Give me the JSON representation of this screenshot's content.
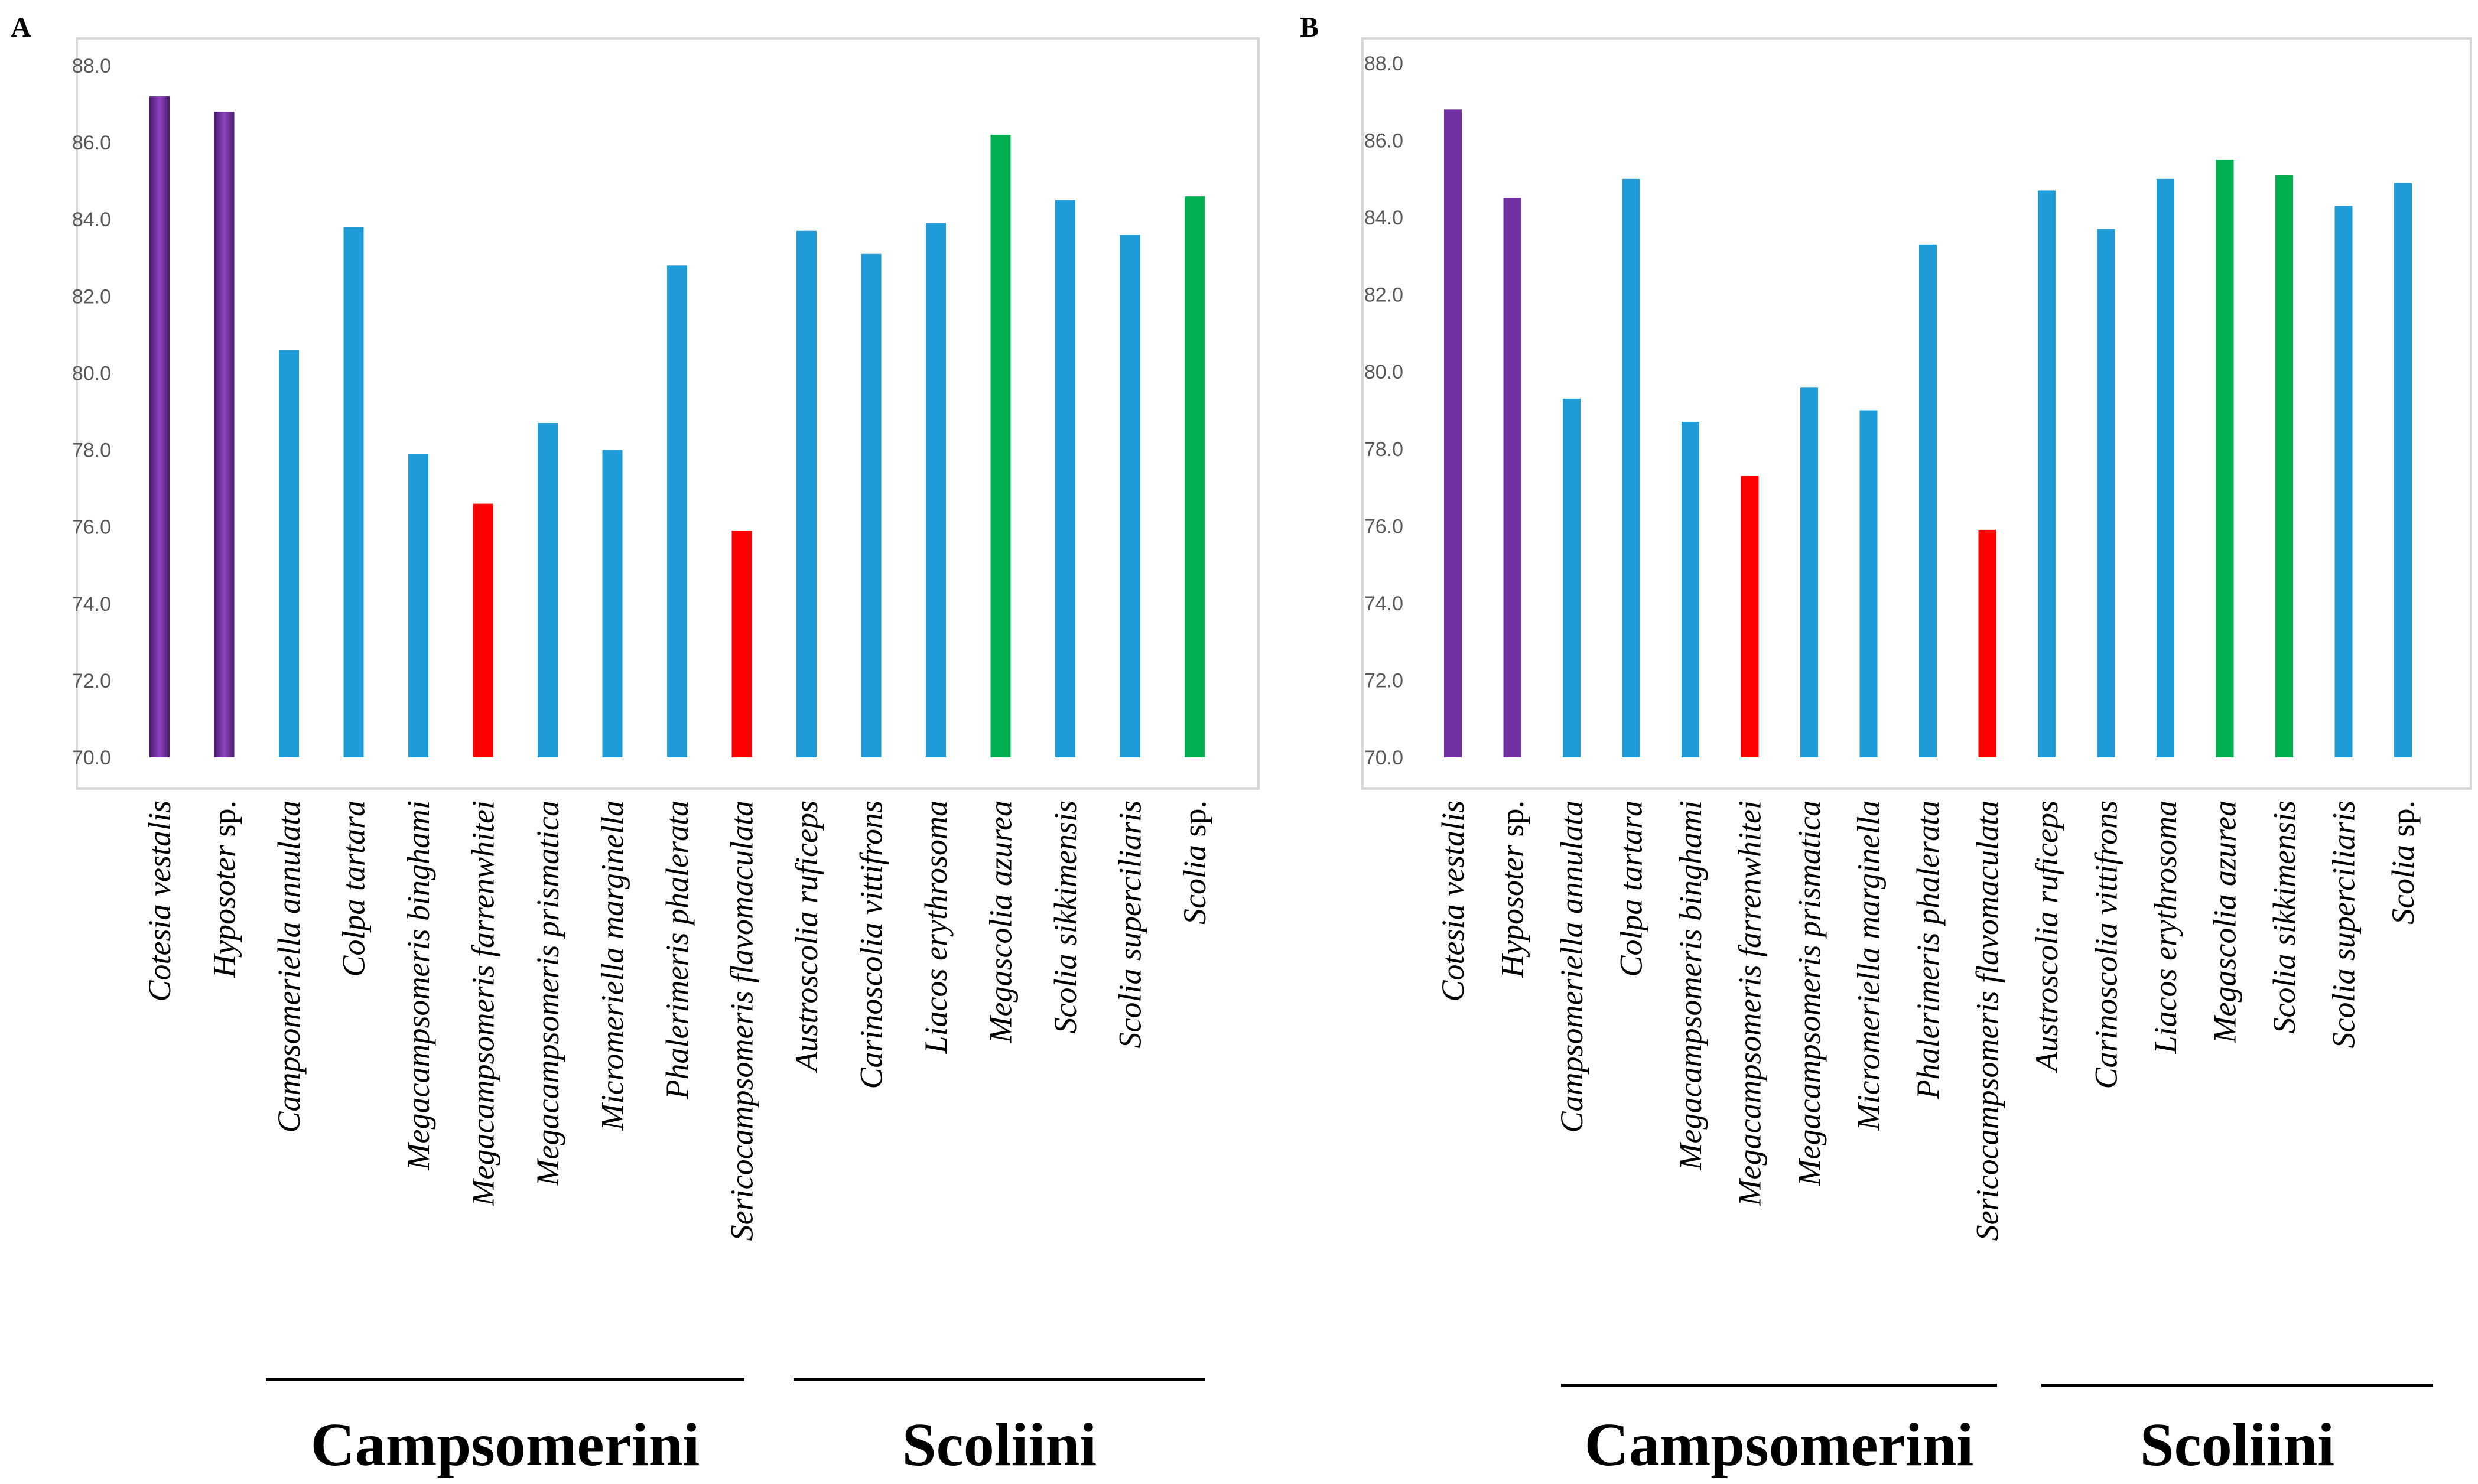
{
  "chart_data": [
    {
      "type": "bar",
      "panel": "A",
      "ylim": [
        70.0,
        88.0
      ],
      "yticks": [
        "70.0",
        "72.0",
        "74.0",
        "76.0",
        "78.0",
        "80.0",
        "82.0",
        "84.0",
        "86.0",
        "88.0"
      ],
      "categories": [
        {
          "name": "Cotesia vestalis",
          "suffix": ""
        },
        {
          "name": "Hyposoter",
          "suffix": " sp."
        },
        {
          "name": "Campsomeriella annulata",
          "suffix": ""
        },
        {
          "name": "Colpa tartara",
          "suffix": ""
        },
        {
          "name": "Megacampsomeris binghami",
          "suffix": ""
        },
        {
          "name": "Megacampsomeris farrenwhitei",
          "suffix": ""
        },
        {
          "name": "Megacampsomeris prismatica",
          "suffix": ""
        },
        {
          "name": "Micromeriella marginella",
          "suffix": ""
        },
        {
          "name": "Phalerimeris phalerata",
          "suffix": ""
        },
        {
          "name": "Sericocampsomeris flavomaculata",
          "suffix": ""
        },
        {
          "name": "Austroscolia ruficeps",
          "suffix": ""
        },
        {
          "name": "Carinoscolia vittifrons",
          "suffix": ""
        },
        {
          "name": "Liacos erythrosoma",
          "suffix": ""
        },
        {
          "name": "Megascolia  azurea",
          "suffix": ""
        },
        {
          "name": "Scolia sikkimensis",
          "suffix": ""
        },
        {
          "name": "Scolia superciliaris",
          "suffix": ""
        },
        {
          "name": "Scolia",
          "suffix": " sp."
        }
      ],
      "values": [
        87.2,
        86.8,
        80.6,
        83.8,
        77.9,
        76.6,
        78.7,
        78.0,
        82.8,
        75.9,
        83.7,
        83.1,
        83.9,
        86.2,
        84.5,
        83.6,
        84.6
      ],
      "colors": [
        "#7030a0",
        "#7030a0",
        "#1f9bd7",
        "#1f9bd7",
        "#1f9bd7",
        "#ff0000",
        "#1f9bd7",
        "#1f9bd7",
        "#1f9bd7",
        "#ff0000",
        "#1f9bd7",
        "#1f9bd7",
        "#1f9bd7",
        "#00b050",
        "#1f9bd7",
        "#1f9bd7",
        "#00b050"
      ],
      "groups": [
        {
          "label": "Campsomerini",
          "from": 2,
          "to": 9
        },
        {
          "label": "Scoliini",
          "from": 10,
          "to": 16
        }
      ]
    },
    {
      "type": "bar",
      "panel": "B",
      "ylim": [
        70.0,
        88.0
      ],
      "yticks": [
        "70.0",
        "72.0",
        "74.0",
        "76.0",
        "78.0",
        "80.0",
        "82.0",
        "84.0",
        "86.0",
        "88.0"
      ],
      "categories": [
        {
          "name": "Cotesia vestalis",
          "suffix": ""
        },
        {
          "name": "Hyposoter",
          "suffix": " sp."
        },
        {
          "name": "Campsomeriella annulata",
          "suffix": ""
        },
        {
          "name": "Colpa tartara",
          "suffix": ""
        },
        {
          "name": "Megacampsomeris binghami",
          "suffix": ""
        },
        {
          "name": "Megacampsomeris farrenwhitei",
          "suffix": ""
        },
        {
          "name": "Megacampsomeris prismatica",
          "suffix": ""
        },
        {
          "name": "Micromeriella marginella",
          "suffix": ""
        },
        {
          "name": "Phalerimeris phalerata",
          "suffix": ""
        },
        {
          "name": "Sericocampsomeris flavomaculata",
          "suffix": ""
        },
        {
          "name": "Austroscolia ruficeps",
          "suffix": ""
        },
        {
          "name": "Carinoscolia vittifrons",
          "suffix": ""
        },
        {
          "name": "Liacos erythrosoma",
          "suffix": ""
        },
        {
          "name": "Megascolia  azurea",
          "suffix": ""
        },
        {
          "name": "Scolia sikkimensis",
          "suffix": ""
        },
        {
          "name": "Scolia superciliaris",
          "suffix": ""
        },
        {
          "name": "Scolia",
          "suffix": " sp."
        }
      ],
      "values": [
        86.8,
        84.5,
        79.3,
        85.0,
        78.7,
        77.3,
        79.6,
        79.0,
        83.3,
        75.9,
        84.7,
        83.7,
        85.0,
        85.5,
        85.1,
        84.3,
        84.9
      ],
      "colors": [
        "#7030a0",
        "#7030a0",
        "#1f9bd7",
        "#1f9bd7",
        "#1f9bd7",
        "#ff0000",
        "#1f9bd7",
        "#1f9bd7",
        "#1f9bd7",
        "#ff0000",
        "#1f9bd7",
        "#1f9bd7",
        "#1f9bd7",
        "#00b050",
        "#00b050",
        "#1f9bd7",
        "#1f9bd7"
      ],
      "groups": [
        {
          "label": "Campsomerini",
          "from": 2,
          "to": 9
        },
        {
          "label": "Scoliini",
          "from": 10,
          "to": 16
        }
      ]
    }
  ]
}
